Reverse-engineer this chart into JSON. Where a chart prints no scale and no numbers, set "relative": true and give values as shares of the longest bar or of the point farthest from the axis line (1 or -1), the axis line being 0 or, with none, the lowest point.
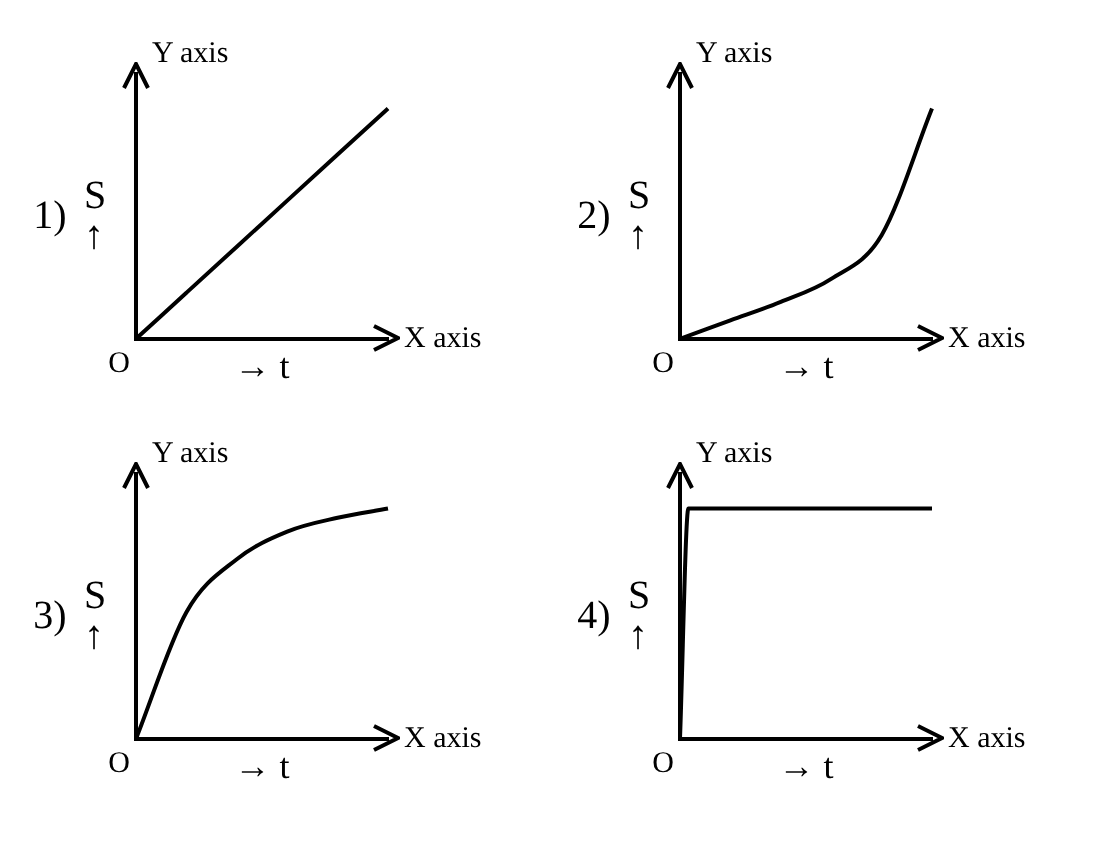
{
  "chart_data": [
    {
      "type": "line",
      "title": "1)",
      "xlabel": "→ t",
      "ylabel": "S ↑",
      "annotations": [
        "Y axis",
        "X axis",
        "O"
      ],
      "relative": true,
      "categories": [
        null,
        null,
        null,
        null,
        null,
        null
      ],
      "values": [
        0,
        0.2,
        0.4,
        0.6,
        0.8,
        1
      ],
      "color": "#000000",
      "grid": false,
      "legend": false,
      "marker": "none"
    },
    {
      "type": "line",
      "title": "2)",
      "xlabel": "→ t",
      "ylabel": "S ↑",
      "annotations": [
        "Y axis",
        "X axis",
        "O"
      ],
      "relative": true,
      "categories": [
        null,
        null,
        null,
        null,
        null,
        null
      ],
      "values": [
        0,
        0.08,
        0.16,
        0.26,
        0.45,
        1
      ],
      "color": "#000000",
      "grid": false,
      "legend": false,
      "marker": "none"
    },
    {
      "type": "line",
      "title": "3)",
      "xlabel": "→ t",
      "ylabel": "S ↑",
      "annotations": [
        "Y axis",
        "X axis",
        "O"
      ],
      "relative": true,
      "categories": [
        null,
        null,
        null,
        null,
        null,
        null
      ],
      "values": [
        0,
        0.55,
        0.78,
        0.9,
        0.96,
        1
      ],
      "color": "#000000",
      "grid": false,
      "legend": false,
      "marker": "none"
    },
    {
      "type": "line",
      "title": "4)",
      "xlabel": "→ t",
      "ylabel": "S ↑",
      "annotations": [
        "Y axis",
        "X axis",
        "O"
      ],
      "relative": true,
      "categories": [
        null,
        null,
        null,
        null,
        null,
        null,
        null,
        null,
        null,
        null,
        null,
        null,
        null,
        null,
        null,
        null,
        null,
        null,
        null,
        null,
        null,
        null,
        null,
        null,
        null,
        null,
        null,
        null,
        null,
        null,
        null
      ],
      "values": [
        0,
        1,
        1,
        1,
        1,
        1,
        1,
        1,
        1,
        1,
        1,
        1,
        1,
        1,
        1,
        1,
        1,
        1,
        1,
        1,
        1,
        1,
        1,
        1,
        1,
        1,
        1,
        1,
        1,
        1,
        1
      ],
      "color": "#000000",
      "grid": false,
      "legend": false,
      "marker": "none"
    }
  ]
}
